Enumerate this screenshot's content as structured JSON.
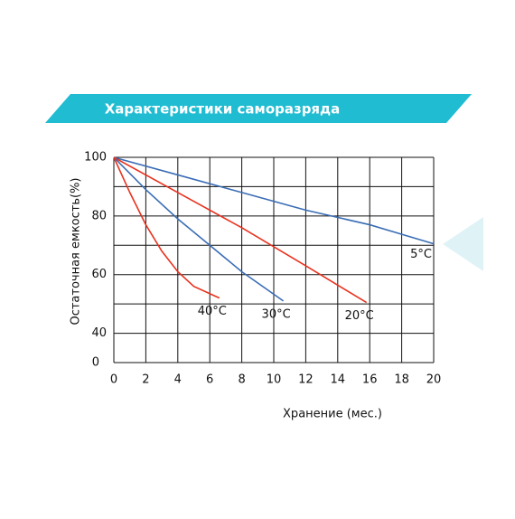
{
  "chart_data": {
    "type": "line",
    "title": "Характеристики саморазряда",
    "x_label": "Хранение (мес.)",
    "y_label": "Остаточная емкость(%)",
    "xlim": [
      0,
      20
    ],
    "xticks": [
      0,
      2,
      4,
      6,
      8,
      10,
      12,
      14,
      16,
      18,
      20
    ],
    "ylim": [
      30,
      100
    ],
    "yticks": [
      40,
      60,
      80,
      100
    ],
    "ygridlines": [
      30,
      40,
      50,
      60,
      70,
      80,
      90,
      100
    ],
    "y_break_label": "0",
    "grid": true,
    "series": [
      {
        "name": "5°C",
        "color": "#3a6db5",
        "x": [
          0,
          4,
          8,
          12,
          16,
          20
        ],
        "values": [
          100,
          94,
          88,
          82,
          77,
          70.5
        ]
      },
      {
        "name": "20°C",
        "color": "#e8321e",
        "x": [
          0,
          4,
          8,
          12,
          15.8
        ],
        "values": [
          100,
          88,
          76,
          63,
          50.5
        ]
      },
      {
        "name": "30°C",
        "color": "#3a6db5",
        "x": [
          0,
          2,
          4,
          6,
          8,
          10.6
        ],
        "values": [
          100,
          89,
          79,
          70,
          61,
          51
        ]
      },
      {
        "name": "40°C",
        "color": "#e8321e",
        "x": [
          0,
          1,
          2,
          3,
          4,
          5,
          6.6
        ],
        "values": [
          100,
          88,
          77,
          68,
          61,
          56,
          52
        ]
      }
    ]
  }
}
